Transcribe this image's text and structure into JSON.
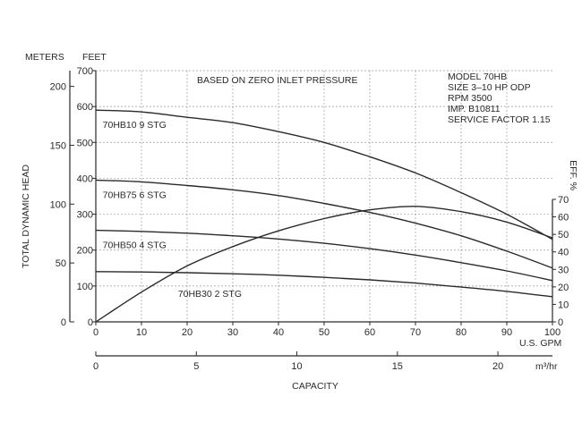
{
  "chart_data": {
    "type": "line",
    "note": "BASED ON ZERO INLET PRESSURE",
    "info": [
      "MODEL 70HB",
      "SIZE 3–10 HP ODP",
      "RPM 3500",
      "IMP. B10811",
      "SERVICE FACTOR 1.15"
    ],
    "y_left_label": "TOTAL DYNAMIC HEAD",
    "y_meters_header": "METERS",
    "y_feet_header": "FEET",
    "y_eff_label": "EFF. %",
    "x_gpm_unit": "U.S. GPM",
    "x_m3_unit": "m³/hr",
    "xlabel": "CAPACITY",
    "xlim_gpm": [
      0,
      100
    ],
    "ylim_feet": [
      0,
      700
    ],
    "ylim_eff": [
      0,
      70
    ],
    "grid": true,
    "x_ticks_gpm": [
      0,
      10,
      20,
      30,
      40,
      50,
      60,
      70,
      80,
      90,
      100
    ],
    "y_ticks_feet": [
      0,
      100,
      200,
      300,
      400,
      500,
      600,
      700
    ],
    "y_ticks_meters": [
      0,
      50,
      100,
      150,
      200
    ],
    "y_ticks_eff": [
      0,
      10,
      20,
      30,
      40,
      50,
      60,
      70
    ],
    "x_ticks_m3": [
      0,
      5,
      10,
      15,
      20
    ],
    "series": [
      {
        "name": "70HB10 9 STG",
        "axis": "feet",
        "x": [
          0,
          10,
          20,
          30,
          40,
          50,
          60,
          70,
          80,
          90,
          100
        ],
        "y": [
          590,
          585,
          570,
          555,
          530,
          500,
          460,
          415,
          360,
          300,
          230
        ]
      },
      {
        "name": "70HB75 6 STG",
        "axis": "feet",
        "x": [
          0,
          10,
          20,
          30,
          40,
          50,
          60,
          70,
          80,
          90,
          100
        ],
        "y": [
          395,
          390,
          380,
          368,
          352,
          330,
          305,
          275,
          240,
          197,
          150
        ]
      },
      {
        "name": "70HB50 4 STG",
        "axis": "feet",
        "x": [
          0,
          10,
          20,
          30,
          40,
          50,
          60,
          70,
          80,
          90,
          100
        ],
        "y": [
          255,
          252,
          247,
          240,
          231,
          219,
          204,
          186,
          165,
          142,
          115
        ]
      },
      {
        "name": "70HB30 2 STG",
        "axis": "feet",
        "x": [
          0,
          10,
          20,
          30,
          40,
          50,
          60,
          70,
          80,
          90,
          100
        ],
        "y": [
          140,
          139,
          137,
          134,
          130,
          124,
          117,
          108,
          97,
          85,
          70
        ]
      },
      {
        "name": "",
        "axis": "eff",
        "x": [
          0,
          10,
          20,
          30,
          40,
          50,
          60,
          70,
          80,
          90,
          100
        ],
        "y": [
          0,
          17,
          32,
          43,
          52,
          59,
          64,
          66,
          63,
          57,
          48
        ]
      }
    ]
  }
}
